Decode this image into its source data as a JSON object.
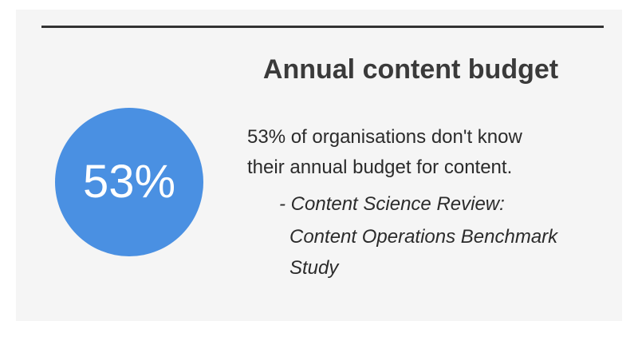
{
  "card": {
    "stat": "53%",
    "title": "Annual content budget",
    "body_lines": [
      "53% of organisations don't know",
      "their annual budget for content."
    ],
    "citation_lines": [
      "- Content Science Review:",
      "Content Operations Benchmark",
      "Study"
    ]
  }
}
